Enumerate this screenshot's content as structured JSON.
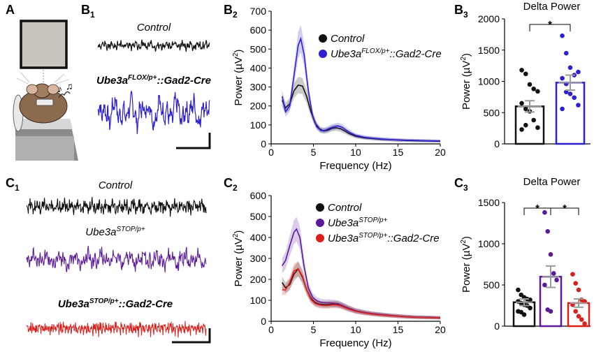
{
  "panels": {
    "A": {
      "label": "A"
    },
    "B1": {
      "label": "B",
      "sub": "1",
      "trace_labels": [
        {
          "base": "Control",
          "sup": "",
          "tail": ""
        },
        {
          "base": "Ube3a",
          "sup": "FLOX/p+",
          "tail": "::Gad2-Cre"
        }
      ]
    },
    "C1": {
      "label": "C",
      "sub": "1",
      "trace_labels": [
        {
          "base": "Control",
          "sup": "",
          "tail": ""
        },
        {
          "base": "Ube3a",
          "sup": "STOP/p+",
          "tail": ""
        },
        {
          "base": "Ube3a",
          "sup": "STOP/p+",
          "tail": "::Gad2-Cre"
        }
      ]
    },
    "B2": {
      "label": "B",
      "sub": "2"
    },
    "C2": {
      "label": "C",
      "sub": "2"
    },
    "B3": {
      "label": "B",
      "sub": "3"
    },
    "C3": {
      "label": "C",
      "sub": "3"
    }
  },
  "colors": {
    "control": "#111111",
    "flox": "#2e1fd1",
    "stop": "#5b1a9a",
    "stop_gad2": "#d9201c"
  },
  "chart_data": [
    {
      "id": "B2",
      "type": "line",
      "title": "",
      "xlabel": "Frequency (Hz)",
      "ylabel": {
        "base": "Power (",
        "unit": "µV",
        "sup": "2",
        "close": ")"
      },
      "xlim": [
        0,
        20
      ],
      "ylim": [
        0,
        700
      ],
      "xticks": [
        0,
        5,
        10,
        15,
        20
      ],
      "yticks": [
        0,
        100,
        200,
        300,
        400,
        500,
        600,
        700
      ],
      "grid": false,
      "legend": "top-right",
      "series": [
        {
          "name": {
            "base": "Control",
            "sup": "",
            "tail": ""
          },
          "color": "#111111",
          "x": [
            1.3,
            1.7,
            2.2,
            2.7,
            3.2,
            3.7,
            4.2,
            4.7,
            5.2,
            5.7,
            6.2,
            6.7,
            7.2,
            7.7,
            8.2,
            8.7,
            9.2,
            10,
            11,
            12,
            13,
            14,
            15,
            16,
            17,
            18,
            19,
            20
          ],
          "y": [
            230,
            190,
            210,
            280,
            310,
            305,
            250,
            170,
            110,
            80,
            68,
            72,
            82,
            85,
            80,
            68,
            55,
            40,
            32,
            28,
            24,
            22,
            20,
            18,
            17,
            16,
            15,
            14
          ]
        },
        {
          "name": {
            "base": "Ube3a",
            "sup": "FLOX/p+",
            "tail": "::Gad2-Cre"
          },
          "color": "#2e1fd1",
          "x": [
            1.3,
            1.7,
            2.2,
            2.7,
            3.2,
            3.5,
            3.9,
            4.4,
            4.9,
            5.4,
            5.9,
            6.4,
            6.9,
            7.4,
            7.9,
            8.4,
            8.9,
            9.4,
            10,
            11,
            12,
            13,
            14,
            15,
            16,
            17,
            18,
            19,
            20
          ],
          "y": [
            250,
            170,
            200,
            360,
            520,
            555,
            470,
            280,
            150,
            90,
            70,
            72,
            82,
            90,
            95,
            88,
            72,
            58,
            45,
            35,
            30,
            26,
            23,
            21,
            19,
            18,
            17,
            16,
            15
          ]
        }
      ]
    },
    {
      "id": "C2",
      "type": "line",
      "title": "",
      "xlabel": "Frequency (Hz)",
      "ylabel": {
        "base": "Power (",
        "unit": "µV",
        "sup": "2",
        "close": ")"
      },
      "xlim": [
        0,
        20
      ],
      "ylim": [
        0,
        600
      ],
      "xticks": [
        0,
        5,
        10,
        15,
        20
      ],
      "yticks": [
        0,
        100,
        200,
        300,
        400,
        500,
        600
      ],
      "grid": false,
      "legend": "top-right",
      "series": [
        {
          "name": {
            "base": "Control",
            "sup": "",
            "tail": ""
          },
          "color": "#111111",
          "x": [
            1.3,
            1.7,
            2.2,
            2.7,
            3.2,
            3.7,
            4.2,
            4.7,
            5.2,
            5.7,
            6.2,
            6.7,
            7.2,
            7.7,
            8.2,
            8.7,
            9.2,
            10,
            11,
            12,
            13,
            14,
            15,
            16,
            17,
            18,
            19,
            20
          ],
          "y": [
            185,
            160,
            175,
            225,
            250,
            210,
            150,
            110,
            90,
            82,
            80,
            80,
            82,
            82,
            78,
            70,
            62,
            50,
            42,
            36,
            32,
            28,
            25,
            22,
            20,
            19,
            18,
            17
          ]
        },
        {
          "name": {
            "base": "Ube3a",
            "sup": "STOP/p+",
            "tail": ""
          },
          "color": "#5b1a9a",
          "x": [
            1.3,
            1.7,
            2.2,
            2.7,
            3.0,
            3.4,
            3.9,
            4.4,
            4.9,
            5.4,
            5.9,
            6.4,
            6.9,
            7.4,
            7.9,
            8.4,
            8.9,
            9.4,
            10,
            11,
            12,
            13,
            14,
            15,
            16,
            17,
            18,
            19,
            20
          ],
          "y": [
            265,
            290,
            360,
            425,
            440,
            400,
            260,
            160,
            115,
            98,
            90,
            88,
            88,
            86,
            84,
            76,
            66,
            58,
            50,
            42,
            36,
            32,
            28,
            25,
            22,
            20,
            19,
            18,
            17
          ]
        },
        {
          "name": {
            "base": "Ube3a",
            "sup": "STOP/p+",
            "tail": "::Gad2-Cre"
          },
          "color": "#d9201c",
          "x": [
            1.3,
            1.7,
            2.2,
            2.7,
            3.2,
            3.7,
            4.2,
            4.7,
            5.2,
            5.7,
            6.2,
            6.7,
            7.2,
            7.7,
            8.2,
            8.7,
            9.2,
            10,
            11,
            12,
            13,
            14,
            15,
            16,
            17,
            18,
            19,
            20
          ],
          "y": [
            150,
            150,
            185,
            240,
            250,
            215,
            150,
            105,
            85,
            78,
            75,
            75,
            78,
            78,
            74,
            66,
            58,
            48,
            40,
            34,
            30,
            27,
            24,
            21,
            19,
            18,
            17,
            16
          ]
        }
      ]
    },
    {
      "id": "B3",
      "type": "bar",
      "title": "Delta Power",
      "xlabel": "",
      "ylabel": {
        "base": "Power (",
        "unit": "µV",
        "sup": "2",
        "close": ")"
      },
      "ylim": [
        0,
        2000
      ],
      "yticks": [
        0,
        500,
        1000,
        1500,
        2000
      ],
      "bars": [
        {
          "mean": 600,
          "sem": 90,
          "color": "#111111",
          "points": [
            1180,
            1120,
            950,
            880,
            840,
            650,
            560,
            520,
            380,
            260,
            230,
            300
          ]
        },
        {
          "mean": 980,
          "sem": 120,
          "color": "#2e1fd1",
          "points": [
            1730,
            1450,
            1220,
            1100,
            1150,
            1050,
            960,
            800,
            740,
            620,
            560,
            830
          ]
        }
      ],
      "significance": [
        {
          "from": 0,
          "to": 1,
          "label": "*"
        }
      ]
    },
    {
      "id": "C3",
      "type": "bar",
      "title": "Delta Power",
      "xlabel": "",
      "ylabel": {
        "base": "Power (",
        "unit": "µV",
        "sup": "2",
        "close": ")"
      },
      "ylim": [
        0,
        1500
      ],
      "yticks": [
        0,
        500,
        1000,
        1500
      ],
      "bars": [
        {
          "mean": 290,
          "sem": 40,
          "color": "#111111",
          "points": [
            440,
            380,
            350,
            330,
            320,
            300,
            280,
            260,
            250,
            220,
            180,
            170,
            140
          ]
        },
        {
          "mean": 600,
          "sem": 130,
          "color": "#5b1a9a",
          "points": [
            1380,
            1150,
            870,
            640,
            560,
            500,
            200,
            180
          ]
        },
        {
          "mean": 280,
          "sem": 50,
          "color": "#d9201c",
          "points": [
            630,
            520,
            440,
            320,
            300,
            260,
            180,
            120,
            80,
            30
          ]
        }
      ],
      "significance": [
        {
          "from": 0,
          "to": 1,
          "label": "*"
        },
        {
          "from": 1,
          "to": 2,
          "label": "*"
        }
      ]
    }
  ]
}
